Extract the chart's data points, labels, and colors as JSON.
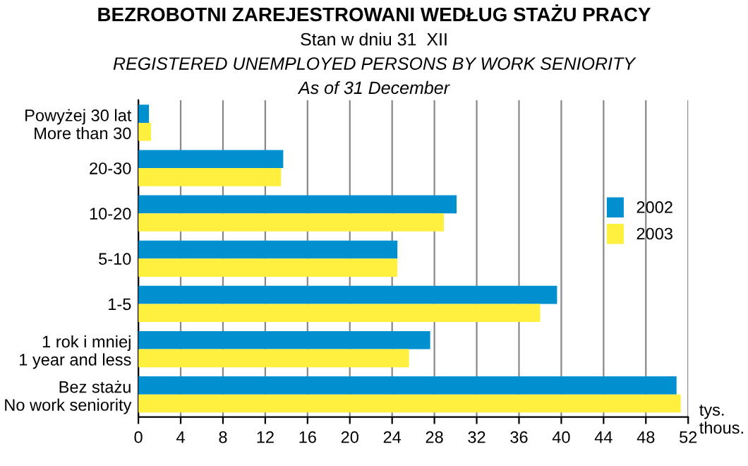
{
  "chart_data": {
    "type": "bar",
    "orientation": "horizontal",
    "title": "BEZROBOTNI ZAREJESTROWANI WEDŁUG STAŻU PRACY",
    "subtitle": "Stan w dniu 31  XII\nREGISTERED UNEMPLOYED PERSONS BY WORK SENIORITY\nAs of 31 December",
    "xlabel": "tys.\nthous.",
    "categories": [
      "Powyżej 30 lat\nMore than 30",
      "20-30",
      "10-20",
      "5-10",
      "1-5",
      "1 rok i mniej\n1 year and less",
      "Bez stażu\nNo work seniority"
    ],
    "series": [
      {
        "name": "2002",
        "color": "#0090d0",
        "values": [
          1.0,
          13.7,
          30.1,
          24.5,
          39.6,
          27.6,
          50.9
        ]
      },
      {
        "name": "2003",
        "color": "#fff040",
        "values": [
          1.2,
          13.5,
          28.9,
          24.5,
          38.0,
          25.6,
          51.3
        ]
      }
    ],
    "xlim": [
      0,
      52
    ],
    "xticks": [
      0,
      4,
      8,
      12,
      16,
      20,
      24,
      28,
      32,
      36,
      40,
      44,
      48,
      52
    ],
    "grid": "x",
    "legend": "right"
  }
}
